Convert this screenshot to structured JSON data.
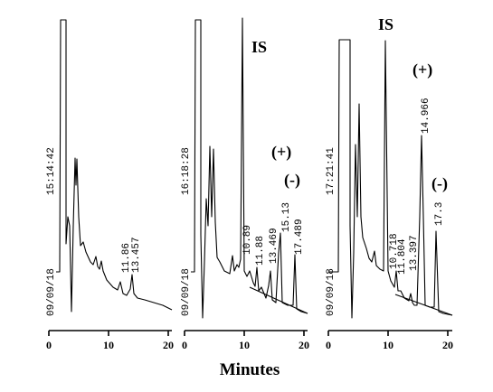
{
  "chart_data": {
    "type": "line",
    "xlabel": "Minutes",
    "panels": [
      {
        "time_stamp": "15:14:42",
        "date_stamp": "09/09/18",
        "xlim": [
          0,
          20
        ],
        "x_ticks": [
          "0",
          "10",
          "20"
        ],
        "peak_labels": [
          "11.86",
          "13.457"
        ],
        "annotations": []
      },
      {
        "time_stamp": "16:18:28",
        "date_stamp": "09/09/18",
        "xlim": [
          0,
          20
        ],
        "x_ticks": [
          "0",
          "10",
          "20"
        ],
        "peak_labels": [
          "10.89",
          "11.88",
          "13.469",
          "15.13",
          "17.489"
        ],
        "annotations": [
          "IS",
          "(+)",
          "(-)"
        ]
      },
      {
        "time_stamp": "17:21:41",
        "date_stamp": "09/09/18",
        "xlim": [
          0,
          20
        ],
        "x_ticks": [
          "0",
          "10",
          "20"
        ],
        "peak_labels": [
          "10.718",
          "11.804",
          "13.397",
          "14.966",
          "17.3"
        ],
        "annotations": [
          "IS",
          "(+)",
          "(-)"
        ]
      }
    ]
  }
}
